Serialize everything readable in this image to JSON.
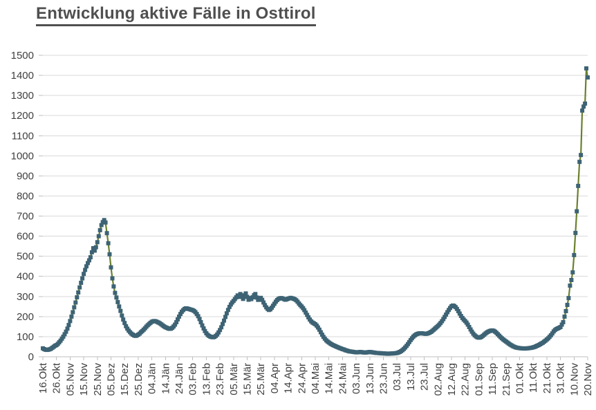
{
  "header": {
    "title": "Entwicklung aktive Fälle in Osttirol"
  },
  "style": {
    "background": "#ffffff",
    "title_color": "#4f4f4f",
    "grid_color": "#d9d9d9",
    "axis_color": "#bfbfbf",
    "label_color": "#3f3f3f",
    "line_color": "#6a802e",
    "marker_color": "#3d6374"
  },
  "chart_data": {
    "type": "line",
    "title": "Entwicklung aktive Fälle in Osttirol",
    "xlabel": "",
    "ylabel": "",
    "ylim": [
      0,
      1500
    ],
    "ytick_step": 100,
    "grid": "horizontal-only",
    "legend": "none",
    "x_start_label": "16.Okt",
    "x_end_label": "20.Nov",
    "x_tick_interval_days": 10,
    "points_per_x_tick": 10,
    "x_tick_labels": [
      "16.Okt",
      "26.Okt",
      "05.Nov",
      "15.Nov",
      "25.Nov",
      "05.Dez",
      "15.Dez",
      "25.Dez",
      "04.Jän",
      "14.Jän",
      "24.Jän",
      "03.Feb",
      "13.Feb",
      "23.Feb",
      "05.Mär",
      "15.Mär",
      "25.Mär",
      "04.Apr",
      "14.Apr",
      "24.Apr",
      "04.Mai",
      "14.Mai",
      "24.Mai",
      "03.Jun",
      "13.Jun",
      "23.Jun",
      "03.Jul",
      "13.Jul",
      "23.Jul",
      "02.Aug",
      "12.Aug",
      "22.Aug",
      "01.Sep",
      "11.Sep",
      "21.Sep",
      "01.Okt",
      "11.Okt",
      "21.Okt",
      "31.Okt",
      "10.Nov",
      "20.Nov"
    ],
    "series": [
      {
        "name": "aktive Fälle Osttirol",
        "marker": "square",
        "values": [
          42,
          38,
          35,
          34,
          35,
          37,
          40,
          45,
          50,
          55,
          58,
          64,
          72,
          80,
          90,
          100,
          112,
          125,
          140,
          158,
          178,
          200,
          222,
          246,
          270,
          296,
          320,
          345,
          368,
          390,
          412,
          432,
          450,
          466,
          480,
          495,
          520,
          540,
          528,
          545,
          570,
          600,
          630,
          655,
          670,
          680,
          668,
          615,
          565,
          510,
          445,
          390,
          350,
          318,
          295,
          272,
          250,
          228,
          205,
          185,
          168,
          152,
          140,
          130,
          122,
          115,
          110,
          106,
          104,
          106,
          110,
          115,
          122,
          128,
          135,
          142,
          150,
          157,
          163,
          169,
          174,
          177,
          178,
          176,
          173,
          170,
          166,
          161,
          156,
          151,
          147,
          144,
          141,
          139,
          140,
          144,
          151,
          160,
          172,
          186,
          200,
          213,
          224,
          232,
          238,
          241,
          240,
          238,
          236,
          234,
          232,
          228,
          222,
          213,
          202,
          188,
          172,
          156,
          141,
          128,
          117,
          109,
          104,
          100,
          98,
          97,
          99,
          104,
          111,
          121,
          133,
          147,
          163,
          180,
          198,
          216,
          233,
          248,
          260,
          270,
          278,
          287,
          296,
          305,
          298,
          312,
          300,
          288,
          306,
          315,
          298,
          284,
          292,
          287,
          296,
          306,
          312,
          295,
          283,
          288,
          293,
          283,
          270,
          257,
          246,
          238,
          233,
          236,
          244,
          254,
          264,
          274,
          282,
          288,
          291,
          292,
          290,
          287,
          284,
          286,
          289,
          291,
          293,
          291,
          289,
          286,
          281,
          274,
          265,
          257,
          250,
          242,
          232,
          220,
          208,
          196,
          185,
          176,
          170,
          166,
          162,
          155,
          146,
          135,
          122,
          110,
          99,
          90,
          82,
          76,
          71,
          66,
          62,
          58,
          55,
          52,
          49,
          46,
          43,
          41,
          38,
          36,
          33,
          31,
          29,
          27,
          26,
          25,
          24,
          23,
          22,
          22,
          23,
          24,
          23,
          22,
          21,
          21,
          22,
          23,
          24,
          23,
          22,
          21,
          20,
          19,
          19,
          18,
          18,
          17,
          17,
          16,
          16,
          15,
          15,
          16,
          16,
          17,
          17,
          18,
          19,
          21,
          24,
          28,
          33,
          39,
          46,
          54,
          63,
          73,
          83,
          92,
          100,
          106,
          111,
          114,
          116,
          117,
          117,
          116,
          115,
          114,
          115,
          117,
          120,
          124,
          129,
          135,
          141,
          147,
          153,
          160,
          168,
          177,
          187,
          198,
          210,
          222,
          233,
          243,
          251,
          255,
          253,
          247,
          238,
          227,
          215,
          203,
          193,
          185,
          178,
          170,
          160,
          148,
          136,
          125,
          115,
          107,
          101,
          97,
          95,
          96,
          99,
          104,
          110,
          116,
          121,
          125,
          128,
          130,
          131,
          129,
          125,
          119,
          112,
          105,
          98,
          92,
          86,
          81,
          76,
          71,
          66,
          61,
          57,
          53,
          50,
          47,
          45,
          44,
          43,
          42,
          42,
          41,
          41,
          42,
          42,
          43,
          44,
          45,
          47,
          49,
          52,
          55,
          58,
          62,
          66,
          70,
          75,
          80,
          86,
          92,
          99,
          107,
          116,
          126,
          133,
          138,
          141,
          144,
          148,
          160,
          172,
          200,
          227,
          258,
          292,
          354,
          382,
          420,
          506,
          616,
          724,
          850,
          970,
          1004,
          1225,
          1245,
          1260,
          1435,
          1390
        ]
      }
    ]
  }
}
